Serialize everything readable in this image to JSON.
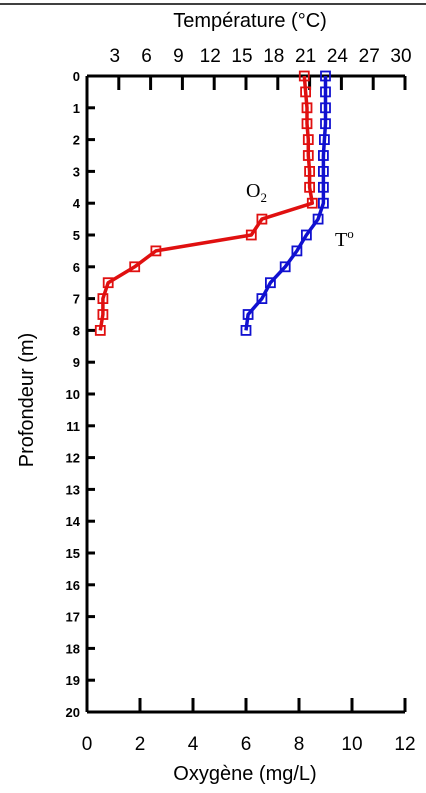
{
  "chart_data": {
    "type": "line",
    "top_axis": {
      "label": "Température (°C)",
      "ticks": [
        3,
        6,
        9,
        12,
        15,
        18,
        21,
        24,
        27,
        30
      ],
      "tick_labels": [
        "3",
        "6",
        "9",
        "12",
        "15",
        "18",
        "21",
        "24",
        "27",
        "30"
      ],
      "range": [
        0,
        30
      ]
    },
    "bottom_axis": {
      "label": "Oxygène (mg/L)",
      "ticks": [
        0,
        2,
        4,
        6,
        8,
        10,
        12
      ],
      "tick_labels": [
        "0",
        "2",
        "4",
        "6",
        "8",
        "10",
        "12"
      ],
      "range": [
        0,
        12
      ]
    },
    "y_axis": {
      "label": "Profondeur (m)",
      "ticks": [
        0,
        1,
        2,
        3,
        4,
        5,
        6,
        7,
        8,
        9,
        10,
        11,
        12,
        13,
        14,
        15,
        16,
        17,
        18,
        19,
        20
      ],
      "tick_labels": [
        "0",
        "1",
        "2",
        "3",
        "4",
        "5",
        "6",
        "7",
        "8",
        "9",
        "10",
        "11",
        "12",
        "13",
        "14",
        "15",
        "16",
        "17",
        "18",
        "19",
        "20"
      ],
      "range": [
        0,
        20
      ],
      "inverted": true
    },
    "series": [
      {
        "name": "O2",
        "label_main": "O",
        "label_sub": "2",
        "axis": "bottom",
        "color": "#e01010",
        "depth": [
          0,
          0.5,
          1,
          1.5,
          2,
          2.5,
          3,
          3.5,
          4,
          4.5,
          5,
          5.5,
          6,
          6.5,
          7,
          7.5,
          8
        ],
        "values": [
          8.2,
          8.25,
          8.3,
          8.3,
          8.35,
          8.35,
          8.4,
          8.4,
          8.5,
          6.6,
          6.2,
          2.6,
          1.8,
          0.8,
          0.6,
          0.6,
          0.5
        ]
      },
      {
        "name": "To",
        "label_main": "T",
        "label_sup": "o",
        "axis": "top",
        "color": "#1010d0",
        "depth": [
          0,
          0.5,
          1,
          1.5,
          2,
          2.5,
          3,
          3.5,
          4,
          4.5,
          5,
          5.5,
          6,
          6.5,
          7,
          7.5,
          8
        ],
        "values": [
          22.5,
          22.5,
          22.5,
          22.5,
          22.4,
          22.3,
          22.3,
          22.3,
          22.3,
          21.8,
          20.7,
          19.8,
          18.7,
          17.3,
          16.5,
          15.2,
          15.0
        ]
      }
    ],
    "grid": false,
    "legend": "inline labels"
  }
}
